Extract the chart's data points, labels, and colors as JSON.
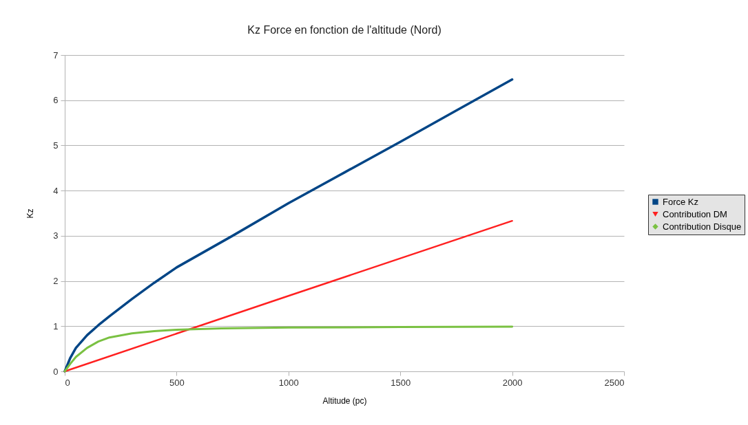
{
  "chart_data": {
    "type": "line",
    "title": "Kz Force en fonction de l'altitude (Nord)",
    "xlabel": "Altitude (pc)",
    "ylabel": "Kz",
    "xlim": [
      0,
      2500
    ],
    "xticks": [
      0,
      500,
      1000,
      1500,
      2000,
      2500
    ],
    "ylim": [
      0,
      7
    ],
    "yticks": [
      0,
      1,
      2,
      3,
      4,
      5,
      6,
      7
    ],
    "grid": "y",
    "legend": "right",
    "marker": "none",
    "line_style": "solid",
    "series": [
      {
        "name": "Force Kz",
        "color": "#004586",
        "x": [
          0,
          25,
          50,
          100,
          150,
          200,
          300,
          400,
          500,
          750,
          1000,
          1250,
          1500,
          1750,
          2000
        ],
        "values": [
          0,
          0.3,
          0.52,
          0.8,
          1.02,
          1.22,
          1.6,
          1.96,
          2.3,
          3.0,
          3.72,
          4.4,
          5.08,
          5.77,
          6.46
        ]
      },
      {
        "name": "Contribution DM",
        "color": "#ff2020",
        "x": [
          0,
          1000,
          2000
        ],
        "values": [
          0,
          1.67,
          3.33
        ]
      },
      {
        "name": "Contribution Disque",
        "color": "#7ac142",
        "x": [
          0,
          25,
          50,
          100,
          150,
          200,
          300,
          400,
          500,
          700,
          1000,
          1500,
          2000
        ],
        "values": [
          0,
          0.17,
          0.32,
          0.52,
          0.66,
          0.75,
          0.84,
          0.89,
          0.92,
          0.95,
          0.97,
          0.98,
          0.99
        ]
      }
    ]
  }
}
